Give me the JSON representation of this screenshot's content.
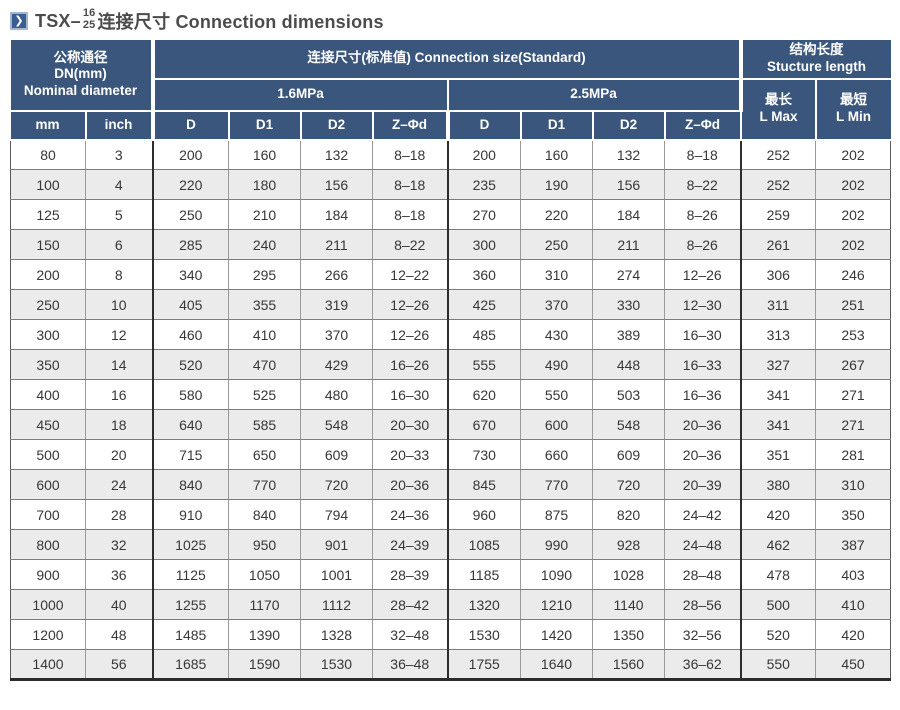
{
  "title": {
    "prefix": "TSX–",
    "fraction_top": "16",
    "fraction_bottom": "25",
    "suffix": "连接尺寸 Connection dimensions",
    "icon_glyph": "❯"
  },
  "colors": {
    "header_bg": "#3a567c",
    "stripe_bg": "#ebebeb",
    "icon_bg": "#3c5d91",
    "icon_border": "#a3b6d0",
    "title_text": "#4b4b4b"
  },
  "table": {
    "header": {
      "dn_line1": "公称通径",
      "dn_line2": "DN(mm)",
      "dn_line3": "Nominal diameter",
      "connection_size": "连接尺寸(标准值) Connection size(Standard)",
      "structure_cn": "结构长度",
      "structure_en": "Stucture length",
      "p16": "1.6MPa",
      "p25": "2.5MPa",
      "lmax_cn": "最长",
      "lmax_en": "L Max",
      "lmin_cn": "最短",
      "lmin_en": "L Min",
      "sub": [
        "mm",
        "inch",
        "D",
        "D1",
        "D2",
        "Z–Φd",
        "D",
        "D1",
        "D2",
        "Z–Φd"
      ]
    },
    "rows": [
      [
        "80",
        "3",
        "200",
        "160",
        "132",
        "8–18",
        "200",
        "160",
        "132",
        "8–18",
        "252",
        "202"
      ],
      [
        "100",
        "4",
        "220",
        "180",
        "156",
        "8–18",
        "235",
        "190",
        "156",
        "8–22",
        "252",
        "202"
      ],
      [
        "125",
        "5",
        "250",
        "210",
        "184",
        "8–18",
        "270",
        "220",
        "184",
        "8–26",
        "259",
        "202"
      ],
      [
        "150",
        "6",
        "285",
        "240",
        "211",
        "8–22",
        "300",
        "250",
        "211",
        "8–26",
        "261",
        "202"
      ],
      [
        "200",
        "8",
        "340",
        "295",
        "266",
        "12–22",
        "360",
        "310",
        "274",
        "12–26",
        "306",
        "246"
      ],
      [
        "250",
        "10",
        "405",
        "355",
        "319",
        "12–26",
        "425",
        "370",
        "330",
        "12–30",
        "311",
        "251"
      ],
      [
        "300",
        "12",
        "460",
        "410",
        "370",
        "12–26",
        "485",
        "430",
        "389",
        "16–30",
        "313",
        "253"
      ],
      [
        "350",
        "14",
        "520",
        "470",
        "429",
        "16–26",
        "555",
        "490",
        "448",
        "16–33",
        "327",
        "267"
      ],
      [
        "400",
        "16",
        "580",
        "525",
        "480",
        "16–30",
        "620",
        "550",
        "503",
        "16–36",
        "341",
        "271"
      ],
      [
        "450",
        "18",
        "640",
        "585",
        "548",
        "20–30",
        "670",
        "600",
        "548",
        "20–36",
        "341",
        "271"
      ],
      [
        "500",
        "20",
        "715",
        "650",
        "609",
        "20–33",
        "730",
        "660",
        "609",
        "20–36",
        "351",
        "281"
      ],
      [
        "600",
        "24",
        "840",
        "770",
        "720",
        "20–36",
        "845",
        "770",
        "720",
        "20–39",
        "380",
        "310"
      ],
      [
        "700",
        "28",
        "910",
        "840",
        "794",
        "24–36",
        "960",
        "875",
        "820",
        "24–42",
        "420",
        "350"
      ],
      [
        "800",
        "32",
        "1025",
        "950",
        "901",
        "24–39",
        "1085",
        "990",
        "928",
        "24–48",
        "462",
        "387"
      ],
      [
        "900",
        "36",
        "1125",
        "1050",
        "1001",
        "28–39",
        "1185",
        "1090",
        "1028",
        "28–48",
        "478",
        "403"
      ],
      [
        "1000",
        "40",
        "1255",
        "1170",
        "1112",
        "28–42",
        "1320",
        "1210",
        "1140",
        "28–56",
        "500",
        "410"
      ],
      [
        "1200",
        "48",
        "1485",
        "1390",
        "1328",
        "32–48",
        "1530",
        "1420",
        "1350",
        "32–56",
        "520",
        "420"
      ],
      [
        "1400",
        "56",
        "1685",
        "1590",
        "1530",
        "36–48",
        "1755",
        "1640",
        "1560",
        "36–62",
        "550",
        "450"
      ]
    ]
  }
}
